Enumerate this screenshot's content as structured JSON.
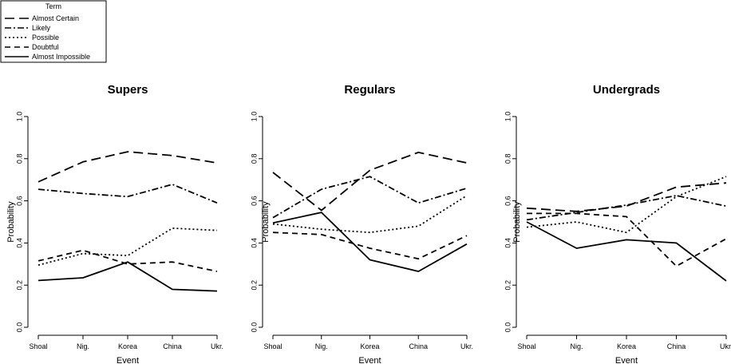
{
  "legend": {
    "title": "Term",
    "placement": "top-left",
    "entries": [
      {
        "label": "Almost Certain",
        "dash": "12,6"
      },
      {
        "label": "Likely",
        "dash": "8,3,2,3"
      },
      {
        "label": "Possible",
        "dash": "2,3"
      },
      {
        "label": "Doubtful",
        "dash": "7,5"
      },
      {
        "label": "Almost Impossible",
        "dash": ""
      }
    ]
  },
  "chart_data": [
    {
      "type": "line",
      "title": "Supers",
      "xlabel": "Event",
      "ylabel": "Probability",
      "ylim": [
        0,
        1
      ],
      "yticks": [
        "0.0",
        "0.2",
        "0.4",
        "0.6",
        "0.8",
        "1.0"
      ],
      "categories": [
        "Shoal",
        "Nig.",
        "Korea",
        "China",
        "Ukr."
      ],
      "series": [
        {
          "name": "Almost Certain",
          "values": [
            0.69,
            0.785,
            0.833,
            0.815,
            0.78
          ]
        },
        {
          "name": "Likely",
          "values": [
            0.655,
            0.635,
            0.62,
            0.678,
            0.59
          ]
        },
        {
          "name": "Possible",
          "values": [
            0.295,
            0.35,
            0.34,
            0.47,
            0.46
          ]
        },
        {
          "name": "Doubtful",
          "values": [
            0.315,
            0.365,
            0.3,
            0.31,
            0.265
          ]
        },
        {
          "name": "Almost Impossible",
          "values": [
            0.222,
            0.235,
            0.31,
            0.18,
            0.172
          ]
        }
      ]
    },
    {
      "type": "line",
      "title": "Regulars",
      "xlabel": "Event",
      "ylabel": "Probability",
      "ylim": [
        0,
        1
      ],
      "yticks": [
        "0.0",
        "0.2",
        "0.4",
        "0.6",
        "0.8",
        "1.0"
      ],
      "categories": [
        "Shoal",
        "Nig.",
        "Korea",
        "China",
        "Ukr."
      ],
      "series": [
        {
          "name": "Almost Certain",
          "values": [
            0.735,
            0.555,
            0.745,
            0.83,
            0.78
          ]
        },
        {
          "name": "Likely",
          "values": [
            0.52,
            0.655,
            0.715,
            0.59,
            0.66
          ]
        },
        {
          "name": "Possible",
          "values": [
            0.49,
            0.465,
            0.45,
            0.48,
            0.625
          ]
        },
        {
          "name": "Doubtful",
          "values": [
            0.45,
            0.44,
            0.375,
            0.325,
            0.435
          ]
        },
        {
          "name": "Almost Impossible",
          "values": [
            0.495,
            0.545,
            0.32,
            0.265,
            0.395
          ]
        }
      ]
    },
    {
      "type": "line",
      "title": "Undergrads",
      "xlabel": "Event",
      "ylabel": "Probability",
      "ylim": [
        0,
        1
      ],
      "yticks": [
        "0.0",
        "0.2",
        "0.4",
        "0.6",
        "0.8",
        "1.0"
      ],
      "categories": [
        "Shoal",
        "Nig.",
        "Korea",
        "China",
        "Ukr."
      ],
      "series": [
        {
          "name": "Almost Certain",
          "values": [
            0.565,
            0.55,
            0.575,
            0.665,
            0.685
          ]
        },
        {
          "name": "Likely",
          "values": [
            0.51,
            0.545,
            0.58,
            0.625,
            0.575
          ]
        },
        {
          "name": "Possible",
          "values": [
            0.475,
            0.5,
            0.45,
            0.62,
            0.715
          ]
        },
        {
          "name": "Doubtful",
          "values": [
            0.54,
            0.54,
            0.525,
            0.29,
            0.42
          ]
        },
        {
          "name": "Almost Impossible",
          "values": [
            0.5,
            0.375,
            0.415,
            0.4,
            0.22
          ]
        }
      ]
    }
  ]
}
